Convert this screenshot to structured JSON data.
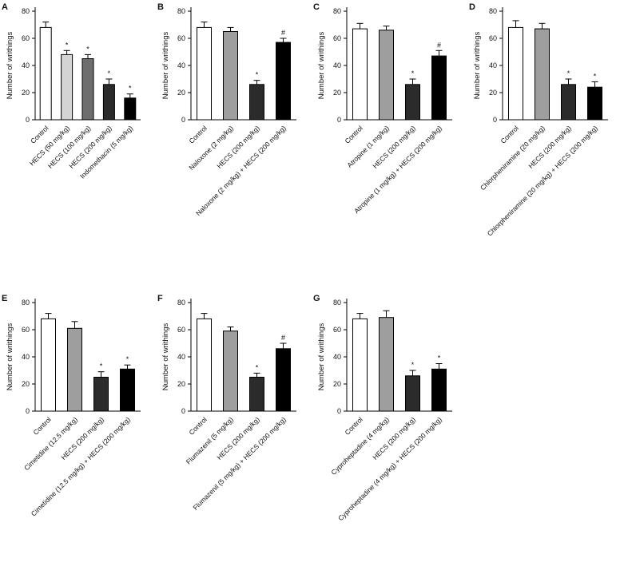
{
  "chart_data": [
    {
      "type": "bar",
      "panel": "A",
      "ylabel": "Number of writhings",
      "ylim": [
        0,
        80
      ],
      "yticks": [
        0,
        20,
        40,
        60,
        80
      ],
      "grid": false,
      "legend": "none",
      "categories": [
        "Control",
        "HECS (50 mg/kg)",
        "HECS (100 mg/kg)",
        "HECS (200 mg/kg)",
        "Indomethacin (5 mg/kg)"
      ],
      "values": [
        68,
        48,
        45,
        26,
        16
      ],
      "errors": [
        4,
        3,
        3,
        4,
        3
      ],
      "annotations": [
        "",
        "*",
        "*",
        "*",
        "*"
      ],
      "colors": [
        "#ffffff",
        "#d4d4d4",
        "#6e6e6e",
        "#2b2b2b",
        "#000000"
      ]
    },
    {
      "type": "bar",
      "panel": "B",
      "ylabel": "Number of writhings",
      "ylim": [
        0,
        80
      ],
      "yticks": [
        0,
        20,
        40,
        60,
        80
      ],
      "grid": false,
      "legend": "none",
      "categories": [
        "Control",
        "Naloxone (2 mg/kg)",
        "HECS (200 mg/kg)",
        "Naloxone (2 mg/kg) + HECS (200 mg/kg)"
      ],
      "values": [
        68,
        65,
        26,
        57
      ],
      "errors": [
        4,
        3,
        3,
        3
      ],
      "annotations": [
        "",
        "",
        "*",
        "#"
      ],
      "colors": [
        "#ffffff",
        "#9e9e9e",
        "#2b2b2b",
        "#000000"
      ]
    },
    {
      "type": "bar",
      "panel": "C",
      "ylabel": "Number of writhings",
      "ylim": [
        0,
        80
      ],
      "yticks": [
        0,
        20,
        40,
        60,
        80
      ],
      "grid": false,
      "legend": "none",
      "categories": [
        "Control",
        "Atropine (1 mg/kg)",
        "HECS (200 mg/kg)",
        "Atropine (1 mg/kg) + HECS (200 mg/kg)"
      ],
      "values": [
        67,
        66,
        26,
        47
      ],
      "errors": [
        4,
        3,
        4,
        4
      ],
      "annotations": [
        "",
        "",
        "*",
        "#"
      ],
      "colors": [
        "#ffffff",
        "#9e9e9e",
        "#2b2b2b",
        "#000000"
      ]
    },
    {
      "type": "bar",
      "panel": "D",
      "ylabel": "Number of writhings",
      "ylim": [
        0,
        80
      ],
      "yticks": [
        0,
        20,
        40,
        60,
        80
      ],
      "grid": false,
      "legend": "none",
      "categories": [
        "Control",
        "Chlorpheniramine (20 mg/kg)",
        "HECS (200 mg/kg)",
        "Chlorpheniramine (20 mg/kg) + HECS (200 mg/kg)"
      ],
      "values": [
        68,
        67,
        26,
        24
      ],
      "errors": [
        5,
        4,
        4,
        4
      ],
      "annotations": [
        "",
        "",
        "*",
        "*"
      ],
      "colors": [
        "#ffffff",
        "#9e9e9e",
        "#2b2b2b",
        "#000000"
      ]
    },
    {
      "type": "bar",
      "panel": "E",
      "ylabel": "Number of writhings",
      "ylim": [
        0,
        80
      ],
      "yticks": [
        0,
        20,
        40,
        60,
        80
      ],
      "grid": false,
      "legend": "none",
      "categories": [
        "Control",
        "Cimetidine (12.5 mg/kg)",
        "HECS (200 mg/kg)",
        "Cimetidine (12.5 mg/kg) + HECS (200 mg/kg)"
      ],
      "values": [
        68,
        61,
        25,
        31
      ],
      "errors": [
        4,
        5,
        4,
        3
      ],
      "annotations": [
        "",
        "",
        "*",
        "*"
      ],
      "colors": [
        "#ffffff",
        "#9e9e9e",
        "#2b2b2b",
        "#000000"
      ]
    },
    {
      "type": "bar",
      "panel": "F",
      "ylabel": "Number of writhings",
      "ylim": [
        0,
        80
      ],
      "yticks": [
        0,
        20,
        40,
        60,
        80
      ],
      "grid": false,
      "legend": "none",
      "categories": [
        "Control",
        "Flumazenil (5 mg/kg)",
        "HECS (200 mg/kg)",
        "Flumazenil (5 mg/kg) + HECS (200 mg/kg)"
      ],
      "values": [
        68,
        59,
        25,
        46
      ],
      "errors": [
        4,
        3,
        3,
        4
      ],
      "annotations": [
        "",
        "",
        "*",
        "#"
      ],
      "colors": [
        "#ffffff",
        "#9e9e9e",
        "#2b2b2b",
        "#000000"
      ]
    },
    {
      "type": "bar",
      "panel": "G",
      "ylabel": "Number of writhings",
      "ylim": [
        0,
        80
      ],
      "yticks": [
        0,
        20,
        40,
        60,
        80
      ],
      "grid": false,
      "legend": "none",
      "categories": [
        "Control",
        "Cyproheptadine (4 mg/kg)",
        "HECS (200 mg/kg)",
        "Cyproheptadine (4 mg/kg) + HECS (200 mg/kg)"
      ],
      "values": [
        68,
        69,
        26,
        31
      ],
      "errors": [
        4,
        5,
        4,
        4
      ],
      "annotations": [
        "",
        "",
        "*",
        "*"
      ],
      "colors": [
        "#ffffff",
        "#9e9e9e",
        "#2b2b2b",
        "#000000"
      ]
    }
  ],
  "layout_note": "Seven bar-chart panels A-G; A-D in top row, E-G in bottom row"
}
